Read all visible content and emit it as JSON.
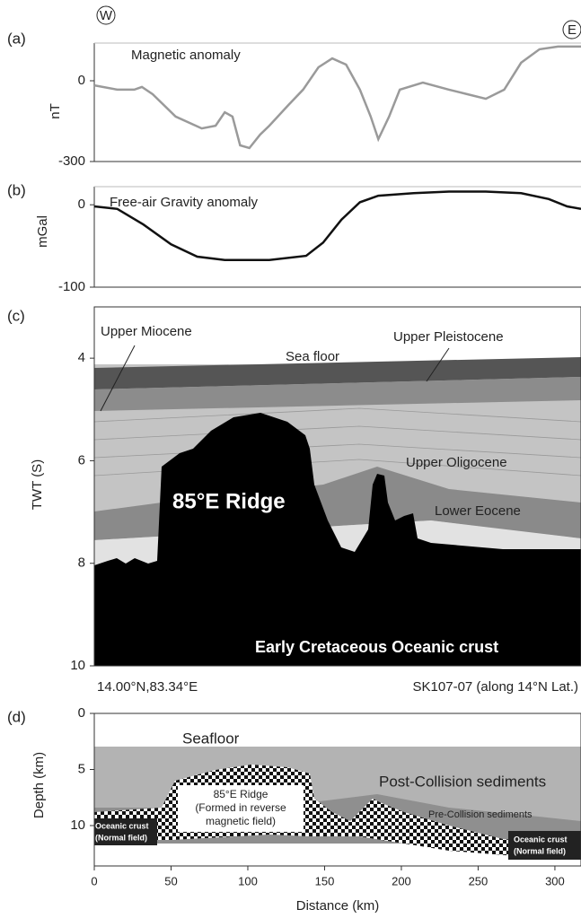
{
  "markers": {
    "west": "W",
    "east": "E"
  },
  "chart_data": [
    {
      "type": "line",
      "panel": "(a)",
      "title": "Magnetic anomaly",
      "ylabel": "nT",
      "color": "#9a9a9a",
      "x": [
        0,
        15,
        26,
        31,
        38,
        53,
        70,
        79,
        85,
        90,
        95,
        101,
        108,
        114,
        126,
        136,
        146,
        155,
        164,
        173,
        180,
        185,
        192,
        199,
        214,
        231,
        243,
        255,
        267,
        278,
        290,
        302,
        317
      ],
      "values": [
        -17,
        -33,
        -33,
        -23,
        -50,
        -133,
        -177,
        -167,
        -117,
        -133,
        -240,
        -250,
        -200,
        -167,
        -93,
        -33,
        50,
        83,
        60,
        -33,
        -133,
        -217,
        -133,
        -33,
        -7,
        -33,
        -50,
        -67,
        -33,
        67,
        117,
        127,
        127
      ],
      "xlim": [
        0,
        317
      ],
      "ylim": [
        -300,
        140
      ],
      "yticks": [
        -300,
        0
      ]
    },
    {
      "type": "line",
      "panel": "(b)",
      "title": "Free-air Gravity anomaly",
      "ylabel": "mGal",
      "color": "#111111",
      "x": [
        0,
        15,
        32,
        50,
        67,
        85,
        114,
        138,
        149,
        161,
        173,
        185,
        208,
        231,
        255,
        278,
        296,
        308,
        317
      ],
      "values": [
        -2,
        -5,
        -24,
        -48,
        -63,
        -67,
        -67,
        -62,
        -46,
        -18,
        3,
        11,
        14,
        16,
        16,
        14,
        7,
        -2,
        -5
      ],
      "xlim": [
        0,
        317
      ],
      "ylim": [
        -100,
        22
      ],
      "yticks": [
        -100,
        0
      ]
    },
    {
      "type": "section",
      "panel": "(c)",
      "ylabel": "TWT (S)",
      "ylim": [
        10,
        3
      ],
      "yticks": [
        4,
        6,
        8,
        10
      ],
      "labels": [
        "Upper Miocene",
        "Sea floor",
        "Upper Pleistocene",
        "Upper Oligocene",
        "85°E Ridge",
        "Lower Eocene",
        "Early Cretaceous Oceanic crust"
      ],
      "left_note": "14.00°N,83.34°E",
      "right_note": "SK107-07 (along 14°N Lat.)"
    },
    {
      "type": "section",
      "panel": "(d)",
      "ylabel": "Depth (km)",
      "xlabel": "Distance (km)",
      "ylim": [
        13.6,
        0
      ],
      "yticks": [
        0,
        5,
        10
      ],
      "xlim": [
        0,
        317
      ],
      "xticks": [
        0,
        50,
        100,
        150,
        200,
        250,
        300
      ],
      "labels": [
        "Seafloor",
        "Post-Collision sediments",
        "85°E Ridge",
        "(Formed in reverse",
        "magnetic field)",
        "Pre-Collision sediments",
        "Oceanic crust",
        "(Normal field)",
        "Oceanic crust",
        "(Normal field)"
      ]
    }
  ]
}
